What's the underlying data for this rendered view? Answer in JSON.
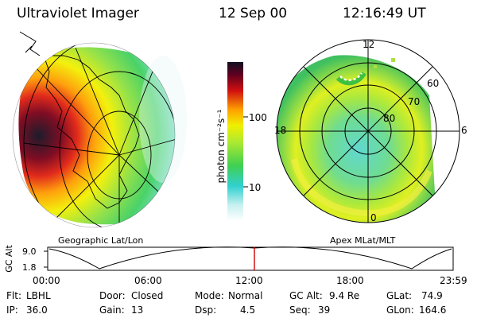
{
  "header": {
    "title": "Ultraviolet Imager",
    "date": "12 Sep 00",
    "time": "12:16:49 UT"
  },
  "colorbar": {
    "unit_label": "photon cm⁻²s⁻¹",
    "ticks": [
      "100",
      "10"
    ],
    "scale": "log"
  },
  "left_panel": {
    "caption": "Geographic Lat/Lon"
  },
  "right_panel": {
    "caption": "Apex MLat/MLT",
    "mlt_labels": [
      "12",
      "18",
      "6",
      "0"
    ],
    "mlat_labels": [
      "60",
      "70",
      "80"
    ]
  },
  "altitude_plot": {
    "ylabel": "GC Alt",
    "yticks": [
      "9.0",
      "1.8"
    ],
    "xticks": [
      "00:00",
      "06:00",
      "12:00",
      "18:00",
      "23:59"
    ],
    "marker_time": "12:16:49",
    "marker_color": "#d00000"
  },
  "status": {
    "row1": [
      {
        "label": "Flt:",
        "value": "LBHL"
      },
      {
        "label": "Door:",
        "value": "Closed"
      },
      {
        "label": "Mode:",
        "value": "Normal"
      },
      {
        "label": "GC Alt:",
        "value": "9.4 Re"
      },
      {
        "label": "GLat:",
        "value": "74.9"
      }
    ],
    "row2": [
      {
        "label": "IP:",
        "value": "36.0"
      },
      {
        "label": "Gain:",
        "value": "13"
      },
      {
        "label": "Dsp:",
        "value": "4.5"
      },
      {
        "label": "Seq:",
        "value": "39"
      },
      {
        "label": "GLon:",
        "value": "164.6"
      }
    ]
  }
}
